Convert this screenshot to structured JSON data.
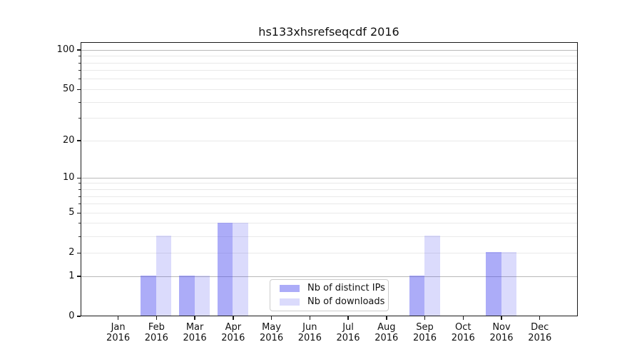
{
  "chart_data": {
    "type": "bar",
    "title": "hs133xhsrefseqcdf 2016",
    "categories": [
      "Jan 2016",
      "Feb 2016",
      "Mar 2016",
      "Apr 2016",
      "May 2016",
      "Jun 2016",
      "Jul 2016",
      "Aug 2016",
      "Sep 2016",
      "Oct 2016",
      "Nov 2016",
      "Dec 2016"
    ],
    "series": [
      {
        "name": "Nb of distinct IPs",
        "color": "#4646f073",
        "values": [
          0,
          1,
          1,
          4,
          0,
          0,
          0,
          0,
          1,
          0,
          2,
          0
        ]
      },
      {
        "name": "Nb of downloads",
        "color": "#4646f031",
        "values": [
          0,
          3,
          1,
          4,
          0,
          0,
          0,
          0,
          3,
          0,
          2,
          0
        ]
      }
    ],
    "xlabel": "",
    "ylabel": "",
    "yscale": "log1p",
    "ylim": [
      0,
      100
    ],
    "ytick_labels": [
      0,
      1,
      2,
      5,
      10,
      20,
      50,
      100
    ],
    "ygrid_major": [
      1,
      10,
      100
    ],
    "ygrid_minor": [
      2,
      3,
      4,
      5,
      6,
      7,
      8,
      9,
      20,
      30,
      40,
      50,
      60,
      70,
      80,
      90
    ],
    "grid": "horizontal, major and minor",
    "legend_position": "lower center",
    "colors": {
      "spine": "#1a1a1a",
      "grid_major": "#b9b9b9",
      "grid_minor": "#e9e9e9",
      "legend_border": "#cccccc",
      "background": "#ffffff",
      "text": "#111111"
    }
  }
}
